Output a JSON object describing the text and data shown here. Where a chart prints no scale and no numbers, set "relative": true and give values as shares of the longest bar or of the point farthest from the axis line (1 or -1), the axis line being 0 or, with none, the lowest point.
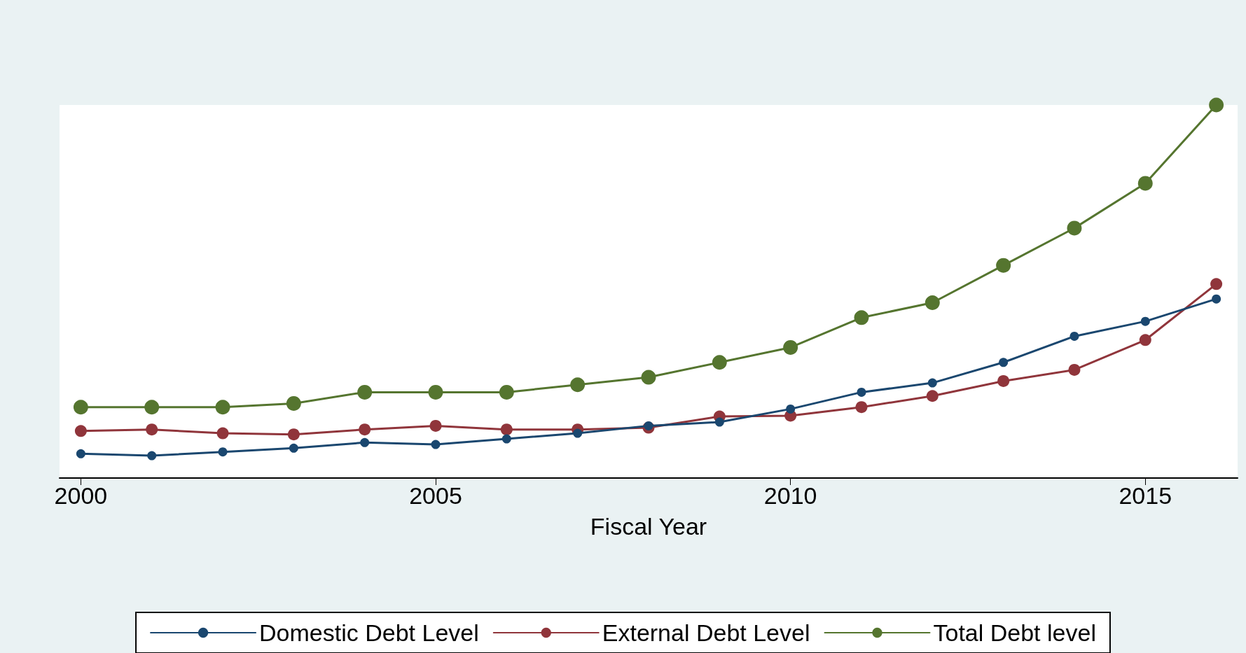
{
  "chart_data": {
    "type": "line",
    "relative": true,
    "xlabel": "Fiscal Year",
    "marker": "circle",
    "legend": "bottom",
    "line_style": "solid",
    "x": [
      2000,
      2001,
      2002,
      2003,
      2004,
      2005,
      2006,
      2007,
      2008,
      2009,
      2010,
      2011,
      2012,
      2013,
      2014,
      2015,
      2016
    ],
    "xlim": [
      1999.7,
      2016.3
    ],
    "xticks": [
      2000,
      2005,
      2010,
      2015
    ],
    "series": [
      {
        "name": "Domestic Debt Level",
        "color": "#1a476f",
        "values": [
          0.065,
          0.06,
          0.07,
          0.08,
          0.095,
          0.09,
          0.105,
          0.12,
          0.14,
          0.15,
          0.185,
          0.23,
          0.255,
          0.31,
          0.38,
          0.42,
          0.48
        ]
      },
      {
        "name": "External Debt Level",
        "color": "#90353b",
        "values": [
          0.126,
          0.13,
          0.12,
          0.117,
          0.13,
          0.14,
          0.13,
          0.13,
          0.135,
          0.165,
          0.167,
          0.19,
          0.22,
          0.26,
          0.29,
          0.37,
          0.52
        ]
      },
      {
        "name": "Total Debt level",
        "color": "#55752f",
        "values": [
          0.19,
          0.19,
          0.19,
          0.2,
          0.23,
          0.23,
          0.23,
          0.25,
          0.27,
          0.31,
          0.35,
          0.43,
          0.47,
          0.57,
          0.67,
          0.79,
          1
        ]
      }
    ]
  }
}
